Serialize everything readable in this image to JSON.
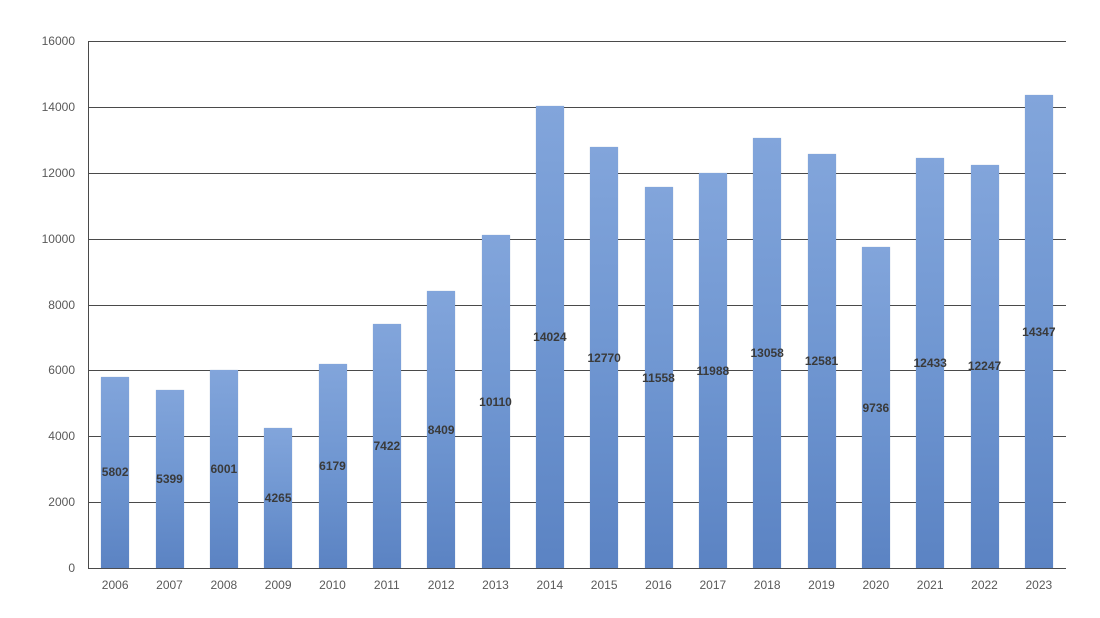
{
  "chart_data": {
    "type": "bar",
    "title": "",
    "xlabel": "",
    "ylabel": "",
    "ylim": [
      0,
      16000
    ],
    "y_ticks": [
      0,
      2000,
      4000,
      6000,
      8000,
      10000,
      12000,
      14000,
      16000
    ],
    "grid": true,
    "legend": null,
    "categories": [
      "2006",
      "2007",
      "2008",
      "2009",
      "2010",
      "2011",
      "2012",
      "2013",
      "2014",
      "2015",
      "2016",
      "2017",
      "2018",
      "2019",
      "2020",
      "2021",
      "2022",
      "2023"
    ],
    "values": [
      5802,
      5399,
      6001,
      4265,
      6179,
      7422,
      8409,
      10110,
      14024,
      12770,
      11558,
      11988,
      13058,
      12581,
      9736,
      12433,
      12247,
      14347
    ],
    "data_labels": true,
    "colors": {
      "bar_top": "#82a5db",
      "bar_bottom": "#5b83c3",
      "grid": "#4a4a4a",
      "axis_text": "#595959",
      "label_text": "#3a3a3a"
    }
  }
}
